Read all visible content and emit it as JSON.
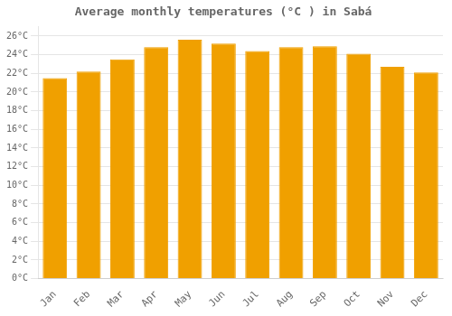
{
  "chart_data": {
    "type": "bar",
    "title": "Average monthly temperatures (°C ) in Sabá",
    "categories": [
      "Jan",
      "Feb",
      "Mar",
      "Apr",
      "May",
      "Jun",
      "Jul",
      "Aug",
      "Sep",
      "Oct",
      "Nov",
      "Dec"
    ],
    "values": [
      21.5,
      22.2,
      23.5,
      24.8,
      25.6,
      25.2,
      24.4,
      24.8,
      24.9,
      24.1,
      22.7,
      22.1
    ],
    "color": "#F0A000",
    "ylim": [
      0,
      27
    ],
    "yticks": [
      {
        "value": 0,
        "label": "0°C"
      },
      {
        "value": 2,
        "label": "2°C"
      },
      {
        "value": 4,
        "label": "4°C"
      },
      {
        "value": 6,
        "label": "6°C"
      },
      {
        "value": 8,
        "label": "8°C"
      },
      {
        "value": 10,
        "label": "10°C"
      },
      {
        "value": 12,
        "label": "12°C"
      },
      {
        "value": 14,
        "label": "14°C"
      },
      {
        "value": 16,
        "label": "16°C"
      },
      {
        "value": 18,
        "label": "18°C"
      },
      {
        "value": 20,
        "label": "20°C"
      },
      {
        "value": 22,
        "label": "22°C"
      },
      {
        "value": 24,
        "label": "24°C"
      },
      {
        "value": 26,
        "label": "26°C"
      }
    ],
    "grid": true
  }
}
